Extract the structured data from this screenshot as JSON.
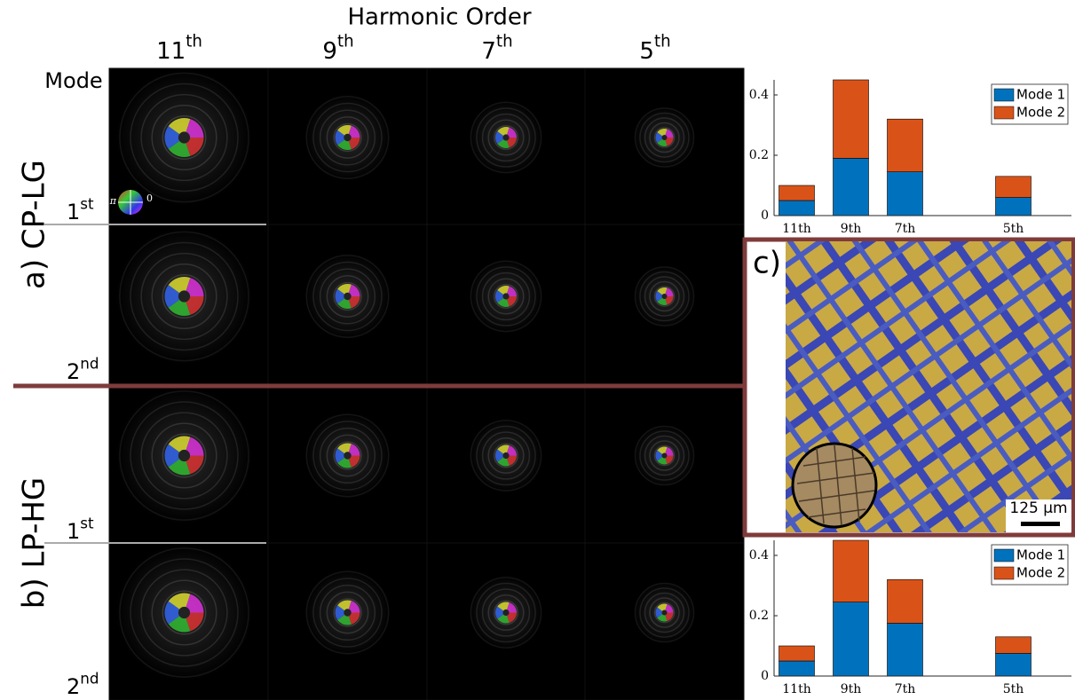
{
  "figure": {
    "title": "Harmonic Order",
    "columns": [
      [
        "11",
        "th"
      ],
      [
        "9",
        "th"
      ],
      [
        "7",
        "th"
      ],
      [
        "5",
        "th"
      ]
    ],
    "mode_label": "Mode",
    "row_groups": [
      "a) CP-LG",
      "b) LP-HG"
    ],
    "rows": [
      [
        "1",
        "st"
      ],
      [
        "2",
        "nd"
      ],
      [
        "1",
        "st"
      ],
      [
        "2",
        "nd"
      ]
    ],
    "phase_wheel": [
      "π",
      "0"
    ],
    "panel_c": "c)",
    "scale_bar": "125 μm"
  },
  "chart_data": [
    {
      "type": "bar",
      "stacked": true,
      "categories": [
        "11th",
        "9th",
        "7th",
        null,
        "5th"
      ],
      "series": [
        {
          "name": "Mode 1",
          "color": "#0072bd",
          "values": [
            0.05,
            0.19,
            0.145,
            null,
            0.06
          ]
        },
        {
          "name": "Mode 2",
          "color": "#d95319",
          "values": [
            0.05,
            0.26,
            0.175,
            null,
            0.07
          ]
        }
      ],
      "ylim": [
        0,
        0.45
      ],
      "yticks": [
        0,
        0.2,
        0.4
      ],
      "legend": "upper-right"
    },
    {
      "type": "bar",
      "stacked": true,
      "categories": [
        "11th",
        "9th",
        "7th",
        null,
        "5th"
      ],
      "series": [
        {
          "name": "Mode 1",
          "color": "#0072bd",
          "values": [
            0.05,
            0.245,
            0.175,
            null,
            0.075
          ]
        },
        {
          "name": "Mode 2",
          "color": "#d95319",
          "values": [
            0.05,
            0.205,
            0.145,
            null,
            0.055
          ]
        }
      ],
      "ylim": [
        0,
        0.45
      ],
      "yticks": [
        0,
        0.2,
        0.4
      ],
      "legend": "upper-right"
    }
  ]
}
